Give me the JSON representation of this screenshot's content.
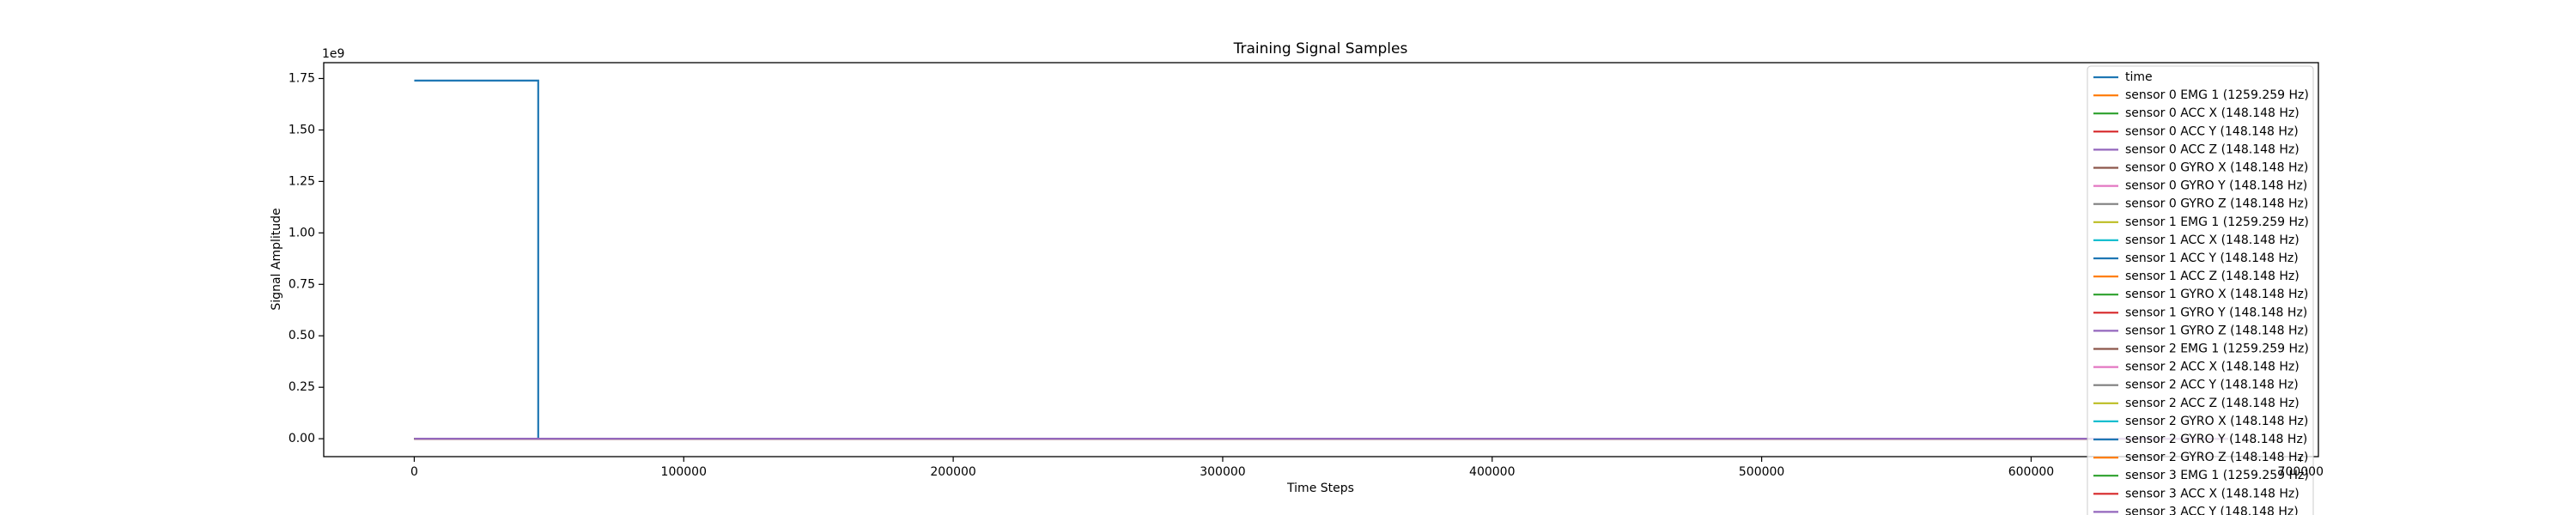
{
  "chart_data": {
    "type": "line",
    "title": "Training Signal Samples",
    "x_label": "Time Steps",
    "y_label": "Signal Amplitude",
    "y_offset_label": "1e9",
    "xlim": [
      -33600,
      706600
    ],
    "ylim": [
      -0.087,
      1.827
    ],
    "xticks": [
      0,
      100000,
      200000,
      300000,
      400000,
      500000,
      600000,
      700000
    ],
    "yticks": [
      {
        "value": 0,
        "label": "0.00"
      },
      0.25,
      {
        "value": 0.5,
        "label": "0.50"
      },
      0.75,
      {
        "value": 1,
        "label": "1.00"
      },
      1.25,
      {
        "value": 1.5,
        "label": "1.50"
      },
      1.75
    ],
    "legend": "upper right",
    "series": [
      {
        "name": "time",
        "color": "#1f77b4",
        "x": [
          0,
          46000,
          46000,
          673000
        ],
        "values": [
          1.74,
          1.74,
          0,
          0
        ]
      },
      {
        "name": "sensor 0 EMG 1 (1259.259 Hz)",
        "color": "#ff7f0e",
        "x": [
          0,
          673000
        ],
        "values": [
          0,
          0
        ]
      },
      {
        "name": "sensor 0 ACC X (148.148 Hz)",
        "color": "#2ca02c",
        "x": [
          0,
          673000
        ],
        "values": [
          0,
          0
        ]
      },
      {
        "name": "sensor 0 ACC Y (148.148 Hz)",
        "color": "#d62728",
        "x": [
          0,
          673000
        ],
        "values": [
          0,
          0
        ]
      },
      {
        "name": "sensor 0 ACC Z (148.148 Hz)",
        "color": "#9467bd",
        "x": [
          0,
          673000
        ],
        "values": [
          0,
          0
        ]
      },
      {
        "name": "sensor 0 GYRO X (148.148 Hz)",
        "color": "#8c564b",
        "x": [
          0,
          673000
        ],
        "values": [
          0,
          0
        ]
      },
      {
        "name": "sensor 0 GYRO Y (148.148 Hz)",
        "color": "#e377c2",
        "x": [
          0,
          673000
        ],
        "values": [
          0,
          0
        ]
      },
      {
        "name": "sensor 0 GYRO Z (148.148 Hz)",
        "color": "#7f7f7f",
        "x": [
          0,
          673000
        ],
        "values": [
          0,
          0
        ]
      },
      {
        "name": "sensor 1 EMG 1 (1259.259 Hz)",
        "color": "#bcbd22",
        "x": [
          0,
          673000
        ],
        "values": [
          0,
          0
        ]
      },
      {
        "name": "sensor 1 ACC X (148.148 Hz)",
        "color": "#17becf",
        "x": [
          0,
          673000
        ],
        "values": [
          0,
          0
        ]
      },
      {
        "name": "sensor 1 ACC Y (148.148 Hz)",
        "color": "#1f77b4",
        "x": [
          0,
          673000
        ],
        "values": [
          0,
          0
        ]
      },
      {
        "name": "sensor 1 ACC Z (148.148 Hz)",
        "color": "#ff7f0e",
        "x": [
          0,
          673000
        ],
        "values": [
          0,
          0
        ]
      },
      {
        "name": "sensor 1 GYRO X (148.148 Hz)",
        "color": "#2ca02c",
        "x": [
          0,
          673000
        ],
        "values": [
          0,
          0
        ]
      },
      {
        "name": "sensor 1 GYRO Y (148.148 Hz)",
        "color": "#d62728",
        "x": [
          0,
          673000
        ],
        "values": [
          0,
          0
        ]
      },
      {
        "name": "sensor 1 GYRO Z (148.148 Hz)",
        "color": "#9467bd",
        "x": [
          0,
          673000
        ],
        "values": [
          0,
          0
        ]
      },
      {
        "name": "sensor 2 EMG 1 (1259.259 Hz)",
        "color": "#8c564b",
        "x": [
          0,
          673000
        ],
        "values": [
          0,
          0
        ]
      },
      {
        "name": "sensor 2 ACC X (148.148 Hz)",
        "color": "#e377c2",
        "x": [
          0,
          673000
        ],
        "values": [
          0,
          0
        ]
      },
      {
        "name": "sensor 2 ACC Y (148.148 Hz)",
        "color": "#7f7f7f",
        "x": [
          0,
          673000
        ],
        "values": [
          0,
          0
        ]
      },
      {
        "name": "sensor 2 ACC Z (148.148 Hz)",
        "color": "#bcbd22",
        "x": [
          0,
          673000
        ],
        "values": [
          0,
          0
        ]
      },
      {
        "name": "sensor 2 GYRO X (148.148 Hz)",
        "color": "#17becf",
        "x": [
          0,
          673000
        ],
        "values": [
          0,
          0
        ]
      },
      {
        "name": "sensor 2 GYRO Y (148.148 Hz)",
        "color": "#1f77b4",
        "x": [
          0,
          673000
        ],
        "values": [
          0,
          0
        ]
      },
      {
        "name": "sensor 2 GYRO Z (148.148 Hz)",
        "color": "#ff7f0e",
        "x": [
          0,
          673000
        ],
        "values": [
          0,
          0
        ]
      },
      {
        "name": "sensor 3 EMG 1 (1259.259 Hz)",
        "color": "#2ca02c",
        "x": [
          0,
          673000
        ],
        "values": [
          0,
          0
        ]
      },
      {
        "name": "sensor 3 ACC X (148.148 Hz)",
        "color": "#d62728",
        "x": [
          0,
          673000
        ],
        "values": [
          0,
          0
        ]
      },
      {
        "name": "sensor 3 ACC Y (148.148 Hz)",
        "color": "#9467bd",
        "x": [
          0,
          673000
        ],
        "values": [
          0,
          0
        ]
      }
    ]
  }
}
